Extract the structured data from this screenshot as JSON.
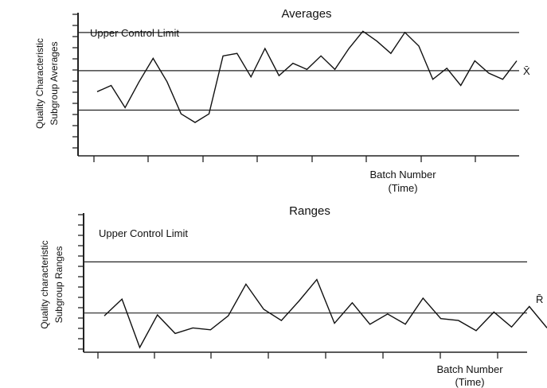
{
  "chart_data": [
    {
      "type": "line",
      "title": "Averages",
      "xlabel": [
        "Batch Number",
        "(Time)"
      ],
      "ylabel": [
        "Quality Characteristic",
        "Subgroup Averages"
      ],
      "ylim": [
        0,
        100
      ],
      "grid": false,
      "reference_lines": [
        {
          "label": "Upper Control Limit",
          "y": 93
        },
        {
          "label": "X̄",
          "y": 62
        },
        {
          "label": "",
          "y": 30
        }
      ],
      "x": [
        1,
        2,
        3,
        4,
        5,
        6,
        7,
        8,
        9,
        10,
        11,
        12,
        13,
        14,
        15,
        16,
        17,
        18,
        19,
        20,
        21,
        22,
        23,
        24,
        25,
        26,
        27,
        28,
        29,
        30,
        31
      ],
      "values": [
        45,
        50,
        32,
        53,
        72,
        53,
        27,
        20,
        27,
        74,
        76,
        57,
        80,
        58,
        68,
        63,
        74,
        63,
        80,
        94,
        86,
        76,
        93,
        82,
        55,
        64,
        50,
        70,
        60,
        55,
        70
      ]
    },
    {
      "type": "line",
      "title": "Ranges",
      "xlabel": [
        "Batch Number",
        "(Time)"
      ],
      "ylabel": [
        "Quality characteristic",
        "Subgroup Ranges"
      ],
      "ylim": [
        0,
        100
      ],
      "grid": false,
      "reference_lines": [
        {
          "label": "Upper Control Limit",
          "y": 92
        },
        {
          "label": "R̄",
          "y": 37
        }
      ],
      "x": [
        1,
        2,
        3,
        4,
        5,
        6,
        7,
        8,
        9,
        10,
        11,
        12,
        13,
        14,
        15,
        16,
        17,
        18,
        19,
        20,
        21,
        22,
        23,
        24,
        25,
        26
      ],
      "values": [
        34,
        52,
        0,
        35,
        15,
        21,
        19,
        34,
        68,
        41,
        29,
        50,
        73,
        26,
        48,
        25,
        36,
        25,
        53,
        31,
        29,
        18,
        38,
        22,
        44,
        21
      ]
    }
  ]
}
